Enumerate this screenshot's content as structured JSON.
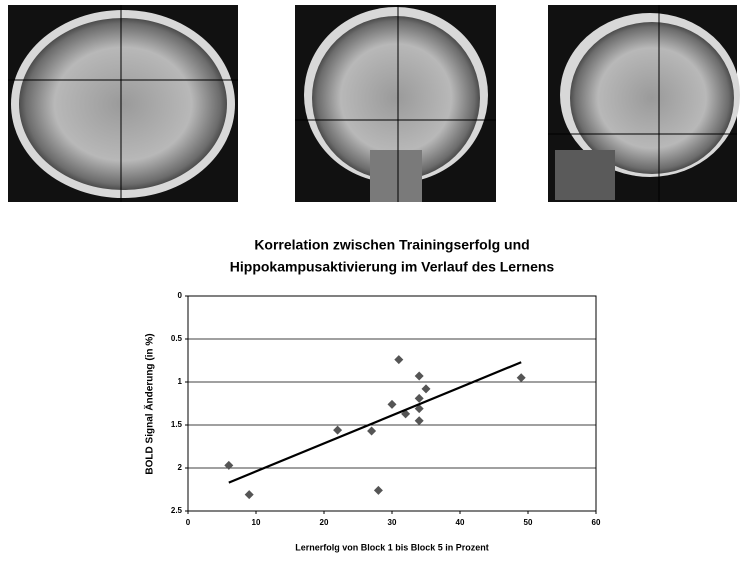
{
  "chart_data": {
    "type": "scatter",
    "title": [
      "Korrelation zwischen Trainingserfolg und",
      "Hippokampusaktivierung im Verlauf des Lernens"
    ],
    "x_label": "Lernerfolg von Block 1 bis Block 5 in Prozent",
    "y_label": "BOLD Signal Änderung (in %)",
    "xlim": [
      0,
      60
    ],
    "xticks": [
      0,
      10,
      20,
      30,
      40,
      50,
      60
    ],
    "ylim": [
      2.5,
      0
    ],
    "yticks": [
      0,
      0.5,
      1,
      1.5,
      2,
      2.5
    ],
    "grid": true,
    "series": [
      {
        "color": "#555555",
        "x": [
          6,
          9,
          22,
          27,
          28,
          30,
          31,
          32,
          34,
          34,
          34,
          34,
          35,
          49
        ],
        "values": [
          1.97,
          2.31,
          1.56,
          1.57,
          2.26,
          1.26,
          0.74,
          1.37,
          0.93,
          1.19,
          1.31,
          1.45,
          1.08,
          0.95
        ]
      }
    ],
    "trendline": {
      "color": "#000000",
      "x": [
        6,
        49
      ],
      "values": [
        2.17,
        0.77
      ]
    }
  }
}
